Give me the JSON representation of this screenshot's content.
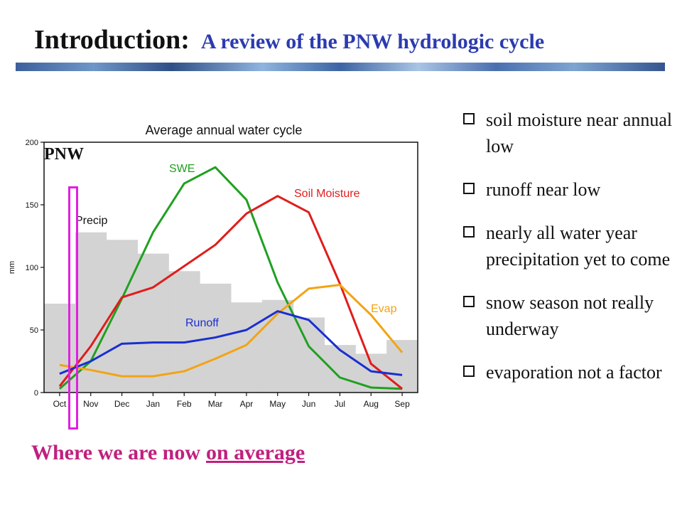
{
  "header": {
    "title": "Introduction:",
    "subtitle": "A review of the PNW hydrologic cycle"
  },
  "region_label": "PNW",
  "annotation": {
    "prefix": "Where we are now",
    "underlined": "on average"
  },
  "bullets": [
    "soil moisture near annual low",
    "runoff near low",
    "nearly all water year precipitation yet to come",
    "snow season not really underway",
    "evaporation not a factor"
  ],
  "chart_data": {
    "type": "line",
    "title": "Average annual water cycle",
    "ylabel": "mm",
    "xlabel": "",
    "ylim": [
      0,
      200
    ],
    "yticks": [
      0,
      50,
      100,
      150,
      200
    ],
    "categories": [
      "Oct",
      "Nov",
      "Dec",
      "Jan",
      "Feb",
      "Mar",
      "Apr",
      "May",
      "Jun",
      "Jul",
      "Aug",
      "Sep"
    ],
    "grid": false,
    "bars": {
      "name": "Precip",
      "color": "#d3d3d3",
      "values": [
        71,
        128,
        122,
        111,
        97,
        87,
        72,
        74,
        60,
        38,
        31,
        42
      ]
    },
    "series": [
      {
        "name": "SWE",
        "color": "#20a020",
        "values": [
          3,
          25,
          75,
          128,
          167,
          180,
          154,
          88,
          37,
          12,
          4,
          3
        ]
      },
      {
        "name": "Soil Moisture",
        "color": "#e01c1c",
        "values": [
          5,
          37,
          76,
          84,
          101,
          118,
          143,
          157,
          144,
          87,
          23,
          3
        ]
      },
      {
        "name": "Evap",
        "color": "#f2a414",
        "values": [
          22,
          18,
          13,
          13,
          17,
          27,
          38,
          63,
          83,
          86,
          62,
          32
        ]
      },
      {
        "name": "Runoff",
        "color": "#1a2fd0",
        "values": [
          15,
          25,
          39,
          40,
          40,
          44,
          50,
          65,
          58,
          34,
          17,
          14
        ]
      }
    ]
  },
  "colors": {
    "title_main": "#111111",
    "title_sub": "#2b3bb0",
    "highlight_box": "#e020e0",
    "annotation_text": "#c0207f"
  }
}
